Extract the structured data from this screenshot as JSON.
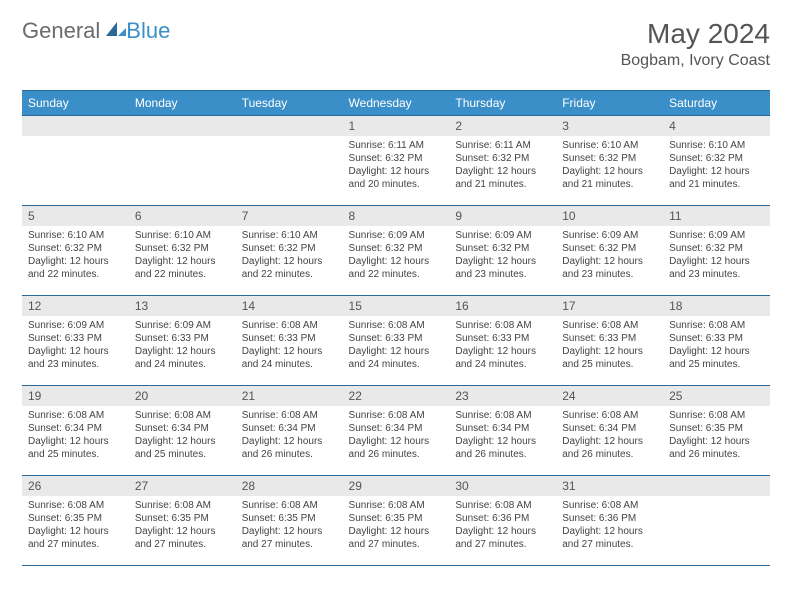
{
  "logo": {
    "part1": "General",
    "part2": "Blue"
  },
  "title": "May 2024",
  "location": "Bogbam, Ivory Coast",
  "colors": {
    "header_bg": "#3b8fc9",
    "header_border": "#2a6a9a",
    "daynum_bg": "#e9e9e9",
    "text": "#444444",
    "logo_gray": "#6b6b6b",
    "logo_blue": "#3b8fc9"
  },
  "daysOfWeek": [
    "Sunday",
    "Monday",
    "Tuesday",
    "Wednesday",
    "Thursday",
    "Friday",
    "Saturday"
  ],
  "weeks": [
    [
      null,
      null,
      null,
      {
        "n": "1",
        "sr": "Sunrise: 6:11 AM",
        "ss": "Sunset: 6:32 PM",
        "d1": "Daylight: 12 hours",
        "d2": "and 20 minutes."
      },
      {
        "n": "2",
        "sr": "Sunrise: 6:11 AM",
        "ss": "Sunset: 6:32 PM",
        "d1": "Daylight: 12 hours",
        "d2": "and 21 minutes."
      },
      {
        "n": "3",
        "sr": "Sunrise: 6:10 AM",
        "ss": "Sunset: 6:32 PM",
        "d1": "Daylight: 12 hours",
        "d2": "and 21 minutes."
      },
      {
        "n": "4",
        "sr": "Sunrise: 6:10 AM",
        "ss": "Sunset: 6:32 PM",
        "d1": "Daylight: 12 hours",
        "d2": "and 21 minutes."
      }
    ],
    [
      {
        "n": "5",
        "sr": "Sunrise: 6:10 AM",
        "ss": "Sunset: 6:32 PM",
        "d1": "Daylight: 12 hours",
        "d2": "and 22 minutes."
      },
      {
        "n": "6",
        "sr": "Sunrise: 6:10 AM",
        "ss": "Sunset: 6:32 PM",
        "d1": "Daylight: 12 hours",
        "d2": "and 22 minutes."
      },
      {
        "n": "7",
        "sr": "Sunrise: 6:10 AM",
        "ss": "Sunset: 6:32 PM",
        "d1": "Daylight: 12 hours",
        "d2": "and 22 minutes."
      },
      {
        "n": "8",
        "sr": "Sunrise: 6:09 AM",
        "ss": "Sunset: 6:32 PM",
        "d1": "Daylight: 12 hours",
        "d2": "and 22 minutes."
      },
      {
        "n": "9",
        "sr": "Sunrise: 6:09 AM",
        "ss": "Sunset: 6:32 PM",
        "d1": "Daylight: 12 hours",
        "d2": "and 23 minutes."
      },
      {
        "n": "10",
        "sr": "Sunrise: 6:09 AM",
        "ss": "Sunset: 6:32 PM",
        "d1": "Daylight: 12 hours",
        "d2": "and 23 minutes."
      },
      {
        "n": "11",
        "sr": "Sunrise: 6:09 AM",
        "ss": "Sunset: 6:32 PM",
        "d1": "Daylight: 12 hours",
        "d2": "and 23 minutes."
      }
    ],
    [
      {
        "n": "12",
        "sr": "Sunrise: 6:09 AM",
        "ss": "Sunset: 6:33 PM",
        "d1": "Daylight: 12 hours",
        "d2": "and 23 minutes."
      },
      {
        "n": "13",
        "sr": "Sunrise: 6:09 AM",
        "ss": "Sunset: 6:33 PM",
        "d1": "Daylight: 12 hours",
        "d2": "and 24 minutes."
      },
      {
        "n": "14",
        "sr": "Sunrise: 6:08 AM",
        "ss": "Sunset: 6:33 PM",
        "d1": "Daylight: 12 hours",
        "d2": "and 24 minutes."
      },
      {
        "n": "15",
        "sr": "Sunrise: 6:08 AM",
        "ss": "Sunset: 6:33 PM",
        "d1": "Daylight: 12 hours",
        "d2": "and 24 minutes."
      },
      {
        "n": "16",
        "sr": "Sunrise: 6:08 AM",
        "ss": "Sunset: 6:33 PM",
        "d1": "Daylight: 12 hours",
        "d2": "and 24 minutes."
      },
      {
        "n": "17",
        "sr": "Sunrise: 6:08 AM",
        "ss": "Sunset: 6:33 PM",
        "d1": "Daylight: 12 hours",
        "d2": "and 25 minutes."
      },
      {
        "n": "18",
        "sr": "Sunrise: 6:08 AM",
        "ss": "Sunset: 6:33 PM",
        "d1": "Daylight: 12 hours",
        "d2": "and 25 minutes."
      }
    ],
    [
      {
        "n": "19",
        "sr": "Sunrise: 6:08 AM",
        "ss": "Sunset: 6:34 PM",
        "d1": "Daylight: 12 hours",
        "d2": "and 25 minutes."
      },
      {
        "n": "20",
        "sr": "Sunrise: 6:08 AM",
        "ss": "Sunset: 6:34 PM",
        "d1": "Daylight: 12 hours",
        "d2": "and 25 minutes."
      },
      {
        "n": "21",
        "sr": "Sunrise: 6:08 AM",
        "ss": "Sunset: 6:34 PM",
        "d1": "Daylight: 12 hours",
        "d2": "and 26 minutes."
      },
      {
        "n": "22",
        "sr": "Sunrise: 6:08 AM",
        "ss": "Sunset: 6:34 PM",
        "d1": "Daylight: 12 hours",
        "d2": "and 26 minutes."
      },
      {
        "n": "23",
        "sr": "Sunrise: 6:08 AM",
        "ss": "Sunset: 6:34 PM",
        "d1": "Daylight: 12 hours",
        "d2": "and 26 minutes."
      },
      {
        "n": "24",
        "sr": "Sunrise: 6:08 AM",
        "ss": "Sunset: 6:34 PM",
        "d1": "Daylight: 12 hours",
        "d2": "and 26 minutes."
      },
      {
        "n": "25",
        "sr": "Sunrise: 6:08 AM",
        "ss": "Sunset: 6:35 PM",
        "d1": "Daylight: 12 hours",
        "d2": "and 26 minutes."
      }
    ],
    [
      {
        "n": "26",
        "sr": "Sunrise: 6:08 AM",
        "ss": "Sunset: 6:35 PM",
        "d1": "Daylight: 12 hours",
        "d2": "and 27 minutes."
      },
      {
        "n": "27",
        "sr": "Sunrise: 6:08 AM",
        "ss": "Sunset: 6:35 PM",
        "d1": "Daylight: 12 hours",
        "d2": "and 27 minutes."
      },
      {
        "n": "28",
        "sr": "Sunrise: 6:08 AM",
        "ss": "Sunset: 6:35 PM",
        "d1": "Daylight: 12 hours",
        "d2": "and 27 minutes."
      },
      {
        "n": "29",
        "sr": "Sunrise: 6:08 AM",
        "ss": "Sunset: 6:35 PM",
        "d1": "Daylight: 12 hours",
        "d2": "and 27 minutes."
      },
      {
        "n": "30",
        "sr": "Sunrise: 6:08 AM",
        "ss": "Sunset: 6:36 PM",
        "d1": "Daylight: 12 hours",
        "d2": "and 27 minutes."
      },
      {
        "n": "31",
        "sr": "Sunrise: 6:08 AM",
        "ss": "Sunset: 6:36 PM",
        "d1": "Daylight: 12 hours",
        "d2": "and 27 minutes."
      },
      null
    ]
  ]
}
